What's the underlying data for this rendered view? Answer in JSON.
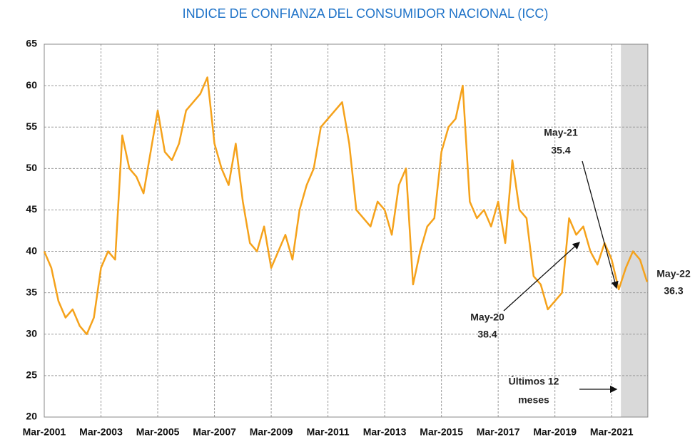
{
  "chart_data": {
    "type": "line",
    "title": "INDICE DE CONFIANZA DEL CONSUMIDOR NACIONAL (ICC)",
    "categories": [
      "Mar-2001",
      null,
      null,
      null,
      null,
      null,
      null,
      null,
      "Mar-2003",
      null,
      null,
      null,
      null,
      null,
      null,
      null,
      "Mar-2005",
      null,
      null,
      null,
      null,
      null,
      null,
      null,
      "Mar-2007",
      null,
      null,
      null,
      null,
      null,
      null,
      null,
      "Mar-2009",
      null,
      null,
      null,
      null,
      null,
      null,
      null,
      "Mar-2011",
      null,
      null,
      null,
      null,
      null,
      null,
      null,
      "Mar-2013",
      null,
      null,
      null,
      null,
      null,
      null,
      null,
      "Mar-2015",
      null,
      null,
      null,
      null,
      null,
      null,
      null,
      "Mar-2017",
      null,
      null,
      null,
      null,
      null,
      null,
      null,
      "Mar-2019",
      null,
      null,
      null,
      null,
      null,
      null,
      null,
      "Mar-2021",
      null,
      null,
      null,
      null,
      null
    ],
    "series": [
      {
        "name": "ICC",
        "color": "#f5a21b",
        "values": [
          40,
          38,
          34,
          32,
          33,
          31,
          30,
          32,
          38,
          40,
          39,
          54,
          50,
          49,
          47,
          52,
          57,
          52,
          51,
          53,
          57,
          58,
          59,
          61,
          53,
          50,
          48,
          53,
          46,
          41,
          40,
          43,
          38,
          40,
          42,
          39,
          45,
          48,
          50,
          55,
          56,
          57,
          58,
          53,
          45,
          44,
          43,
          46,
          45,
          42,
          48,
          50,
          36,
          40,
          43,
          44,
          52,
          55,
          56,
          60,
          46,
          44,
          45,
          43,
          46,
          41,
          51,
          45,
          44,
          37,
          36,
          33,
          34,
          35,
          44,
          42,
          43,
          40,
          38.4,
          41,
          39,
          35.4,
          38,
          40,
          39,
          36.3
        ]
      }
    ],
    "ylim": [
      20,
      65
    ],
    "yticks": [
      20,
      25,
      30,
      35,
      40,
      45,
      50,
      55,
      60,
      65
    ],
    "grid": true,
    "annotations": [
      "May-21",
      "35.4",
      "May-20",
      "38.4",
      "May-22",
      "36.3",
      "Últimos 12",
      "meses"
    ]
  }
}
